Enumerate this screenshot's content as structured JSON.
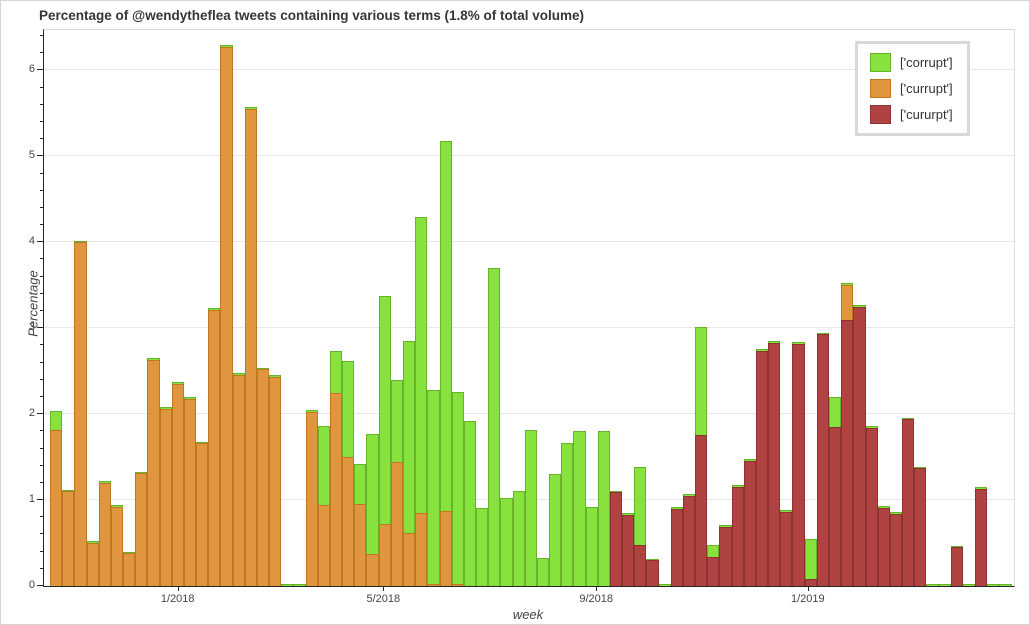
{
  "chart_data": {
    "type": "bar",
    "title": "Percentage of @wendytheflea tweets containing various terms (1.8% of total volume)",
    "xlabel": "week",
    "ylabel": "Percentage",
    "ylim": [
      0,
      6.47
    ],
    "grid": "horizontal-major",
    "legend_position": "upper-right",
    "y_ticks": [
      0,
      1,
      2,
      3,
      4,
      5,
      6
    ],
    "y_minor_tick_step": 0.2,
    "x_ticks": [
      {
        "label": "1/2018",
        "week_index": 10.5
      },
      {
        "label": "5/2018",
        "week_index": 27.4
      },
      {
        "label": "9/2018",
        "week_index": 44.9
      },
      {
        "label": "1/2019",
        "week_index": 62.3
      }
    ],
    "series": [
      {
        "name": "['corrupt']",
        "key": "corrupt",
        "color": "#87e23e",
        "edge": "#68b32c",
        "z": 1
      },
      {
        "name": "['currupt']",
        "key": "currupt",
        "color": "#e0953f",
        "edge": "#c1771f",
        "z": 2
      },
      {
        "name": "['cururpt']",
        "key": "cururpt",
        "color": "#b04341",
        "edge": "#8c3331",
        "z": 3
      }
    ],
    "weeks_values_corrupt_currupt_cururpt": [
      [
        2.04,
        1.81,
        0
      ],
      [
        1.12,
        1.1,
        0
      ],
      [
        4.02,
        4.0,
        0
      ],
      [
        0.52,
        0.5,
        0
      ],
      [
        1.22,
        1.2,
        0
      ],
      [
        0.94,
        0.92,
        0
      ],
      [
        0.4,
        0.38,
        0
      ],
      [
        1.33,
        1.31,
        0
      ],
      [
        2.65,
        2.63,
        0
      ],
      [
        2.08,
        2.06,
        0
      ],
      [
        2.37,
        2.35,
        0
      ],
      [
        2.2,
        2.18,
        0
      ],
      [
        1.68,
        1.66,
        0
      ],
      [
        3.23,
        3.21,
        0
      ],
      [
        6.29,
        6.27,
        0
      ],
      [
        2.48,
        2.46,
        0
      ],
      [
        5.57,
        5.55,
        0
      ],
      [
        2.54,
        2.52,
        0
      ],
      [
        2.45,
        2.43,
        0
      ],
      [
        0.02,
        0,
        0
      ],
      [
        0.02,
        0,
        0
      ],
      [
        2.05,
        2.03,
        0
      ],
      [
        1.86,
        0.94,
        0
      ],
      [
        2.73,
        2.25,
        0
      ],
      [
        2.62,
        1.5,
        0
      ],
      [
        1.42,
        0.96,
        0
      ],
      [
        1.77,
        0.37,
        0
      ],
      [
        3.38,
        0.72,
        0
      ],
      [
        2.4,
        1.44,
        0
      ],
      [
        2.85,
        0.62,
        0
      ],
      [
        4.29,
        0.85,
        0
      ],
      [
        2.28,
        0.02,
        0
      ],
      [
        5.18,
        0.87,
        0
      ],
      [
        2.26,
        0.02,
        0
      ],
      [
        1.92,
        0,
        0
      ],
      [
        0.91,
        0,
        0
      ],
      [
        3.7,
        0,
        0
      ],
      [
        1.03,
        0,
        0
      ],
      [
        1.1,
        0,
        0
      ],
      [
        1.81,
        0,
        0
      ],
      [
        0.33,
        0,
        0
      ],
      [
        1.3,
        0,
        0
      ],
      [
        1.66,
        0,
        0
      ],
      [
        1.8,
        0,
        0
      ],
      [
        0.92,
        0,
        0
      ],
      [
        1.8,
        0,
        0
      ],
      [
        1.11,
        0,
        1.09
      ],
      [
        0.85,
        0,
        0.83
      ],
      [
        1.39,
        0,
        0.48
      ],
      [
        0.32,
        0,
        0.3
      ],
      [
        0.02,
        0,
        0
      ],
      [
        0.92,
        0,
        0.9
      ],
      [
        1.07,
        0,
        1.05
      ],
      [
        3.01,
        0,
        1.76
      ],
      [
        0.48,
        0,
        0.34
      ],
      [
        0.71,
        0,
        0.69
      ],
      [
        1.17,
        0,
        1.15
      ],
      [
        1.48,
        0,
        1.46
      ],
      [
        2.76,
        0,
        2.74
      ],
      [
        2.85,
        0,
        2.83
      ],
      [
        0.88,
        0,
        0.86
      ],
      [
        2.84,
        0,
        2.82
      ],
      [
        0.55,
        0,
        0.08
      ],
      [
        2.95,
        0,
        2.93
      ],
      [
        2.2,
        0,
        1.85
      ],
      [
        3.53,
        3.5,
        3.1
      ],
      [
        3.27,
        0,
        3.25
      ],
      [
        1.86,
        0,
        1.84
      ],
      [
        0.93,
        0,
        0.91
      ],
      [
        0.86,
        0,
        0.84
      ],
      [
        1.96,
        0,
        1.94
      ],
      [
        1.39,
        0,
        1.37
      ],
      [
        0.02,
        0,
        0
      ],
      [
        0.02,
        0,
        0
      ],
      [
        0.47,
        0,
        0.45
      ],
      [
        0.02,
        0,
        0
      ],
      [
        1.15,
        0,
        1.13
      ],
      [
        0.02,
        0,
        0
      ],
      [
        0.02,
        0,
        0
      ]
    ]
  },
  "legend": {
    "entries": [
      {
        "label": "['corrupt']"
      },
      {
        "label": "['currupt']"
      },
      {
        "label": "['cururpt']"
      }
    ]
  },
  "style": {
    "gridline_color": "#e7e7e7",
    "spine_color": "#262626",
    "box_color": "#dcdcdc",
    "text_color": "#444444",
    "title_color": "#363636",
    "legend_border_color": "#d8d8d8"
  }
}
